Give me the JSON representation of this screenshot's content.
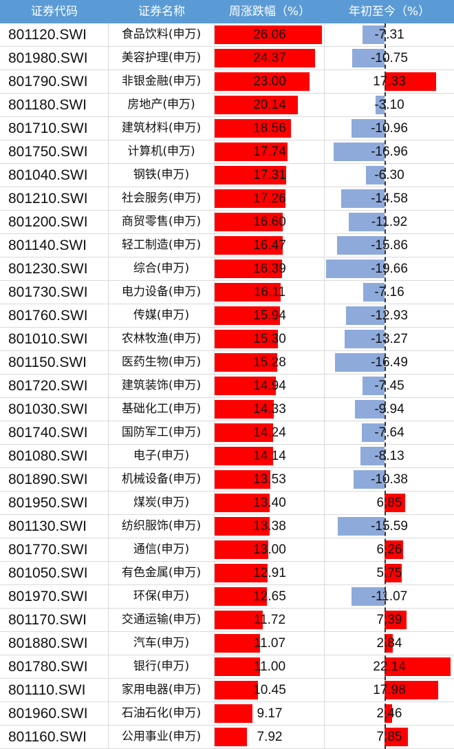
{
  "header": {
    "code": "证券代码",
    "name": "证券名称",
    "week": "周涨跌幅（%）",
    "ytd": "年初至今（%）"
  },
  "colors": {
    "header_bg": "#5b9bd5",
    "positive": "#ff0000",
    "negative": "#8eaadb"
  },
  "chart_data": {
    "type": "table",
    "columns": [
      "证券代码",
      "证券名称",
      "周涨跌幅（%）",
      "年初至今（%）"
    ],
    "rows": [
      {
        "code": "801120.SWI",
        "name": "食品饮料(申万)",
        "week": "26.06",
        "ytd": "-7.31"
      },
      {
        "code": "801980.SWI",
        "name": "美容护理(申万)",
        "week": "24.37",
        "ytd": "-10.75"
      },
      {
        "code": "801790.SWI",
        "name": "非银金融(申万)",
        "week": "23.00",
        "ytd": "17.33"
      },
      {
        "code": "801180.SWI",
        "name": "房地产(申万)",
        "week": "20.14",
        "ytd": "-3.10"
      },
      {
        "code": "801710.SWI",
        "name": "建筑材料(申万)",
        "week": "18.56",
        "ytd": "-10.96"
      },
      {
        "code": "801750.SWI",
        "name": "计算机(申万)",
        "week": "17.74",
        "ytd": "-16.96"
      },
      {
        "code": "801040.SWI",
        "name": "钢铁(申万)",
        "week": "17.31",
        "ytd": "-6.30"
      },
      {
        "code": "801210.SWI",
        "name": "社会服务(申万)",
        "week": "17.26",
        "ytd": "-14.58"
      },
      {
        "code": "801200.SWI",
        "name": "商贸零售(申万)",
        "week": "16.60",
        "ytd": "-11.92"
      },
      {
        "code": "801140.SWI",
        "name": "轻工制造(申万)",
        "week": "16.47",
        "ytd": "-15.86"
      },
      {
        "code": "801230.SWI",
        "name": "综合(申万)",
        "week": "16.39",
        "ytd": "-19.66"
      },
      {
        "code": "801730.SWI",
        "name": "电力设备(申万)",
        "week": "16.11",
        "ytd": "-7.16"
      },
      {
        "code": "801760.SWI",
        "name": "传媒(申万)",
        "week": "15.94",
        "ytd": "-12.93"
      },
      {
        "code": "801010.SWI",
        "name": "农林牧渔(申万)",
        "week": "15.30",
        "ytd": "-13.27"
      },
      {
        "code": "801150.SWI",
        "name": "医药生物(申万)",
        "week": "15.28",
        "ytd": "-16.49"
      },
      {
        "code": "801720.SWI",
        "name": "建筑装饰(申万)",
        "week": "14.94",
        "ytd": "-7.45"
      },
      {
        "code": "801030.SWI",
        "name": "基础化工(申万)",
        "week": "14.33",
        "ytd": "-9.94"
      },
      {
        "code": "801740.SWI",
        "name": "国防军工(申万)",
        "week": "14.24",
        "ytd": "-7.64"
      },
      {
        "code": "801080.SWI",
        "name": "电子(申万)",
        "week": "14.14",
        "ytd": "-8.13"
      },
      {
        "code": "801890.SWI",
        "name": "机械设备(申万)",
        "week": "13.53",
        "ytd": "-10.38"
      },
      {
        "code": "801950.SWI",
        "name": "煤炭(申万)",
        "week": "13.40",
        "ytd": "6.85"
      },
      {
        "code": "801130.SWI",
        "name": "纺织服饰(申万)",
        "week": "13.38",
        "ytd": "-15.59"
      },
      {
        "code": "801770.SWI",
        "name": "通信(申万)",
        "week": "13.00",
        "ytd": "6.26"
      },
      {
        "code": "801050.SWI",
        "name": "有色金属(申万)",
        "week": "12.91",
        "ytd": "5.75"
      },
      {
        "code": "801970.SWI",
        "name": "环保(申万)",
        "week": "12.65",
        "ytd": "-11.07"
      },
      {
        "code": "801170.SWI",
        "name": "交通运输(申万)",
        "week": "11.72",
        "ytd": "7.39"
      },
      {
        "code": "801880.SWI",
        "name": "汽车(申万)",
        "week": "11.07",
        "ytd": "2.84"
      },
      {
        "code": "801780.SWI",
        "name": "银行(申万)",
        "week": "11.00",
        "ytd": "22.14"
      },
      {
        "code": "801110.SWI",
        "name": "家用电器(申万)",
        "week": "10.45",
        "ytd": "17.98"
      },
      {
        "code": "801960.SWI",
        "name": "石油石化(申万)",
        "week": "9.17",
        "ytd": "2.46"
      },
      {
        "code": "801160.SWI",
        "name": "公用事业(申万)",
        "week": "7.92",
        "ytd": "7.85"
      }
    ]
  }
}
